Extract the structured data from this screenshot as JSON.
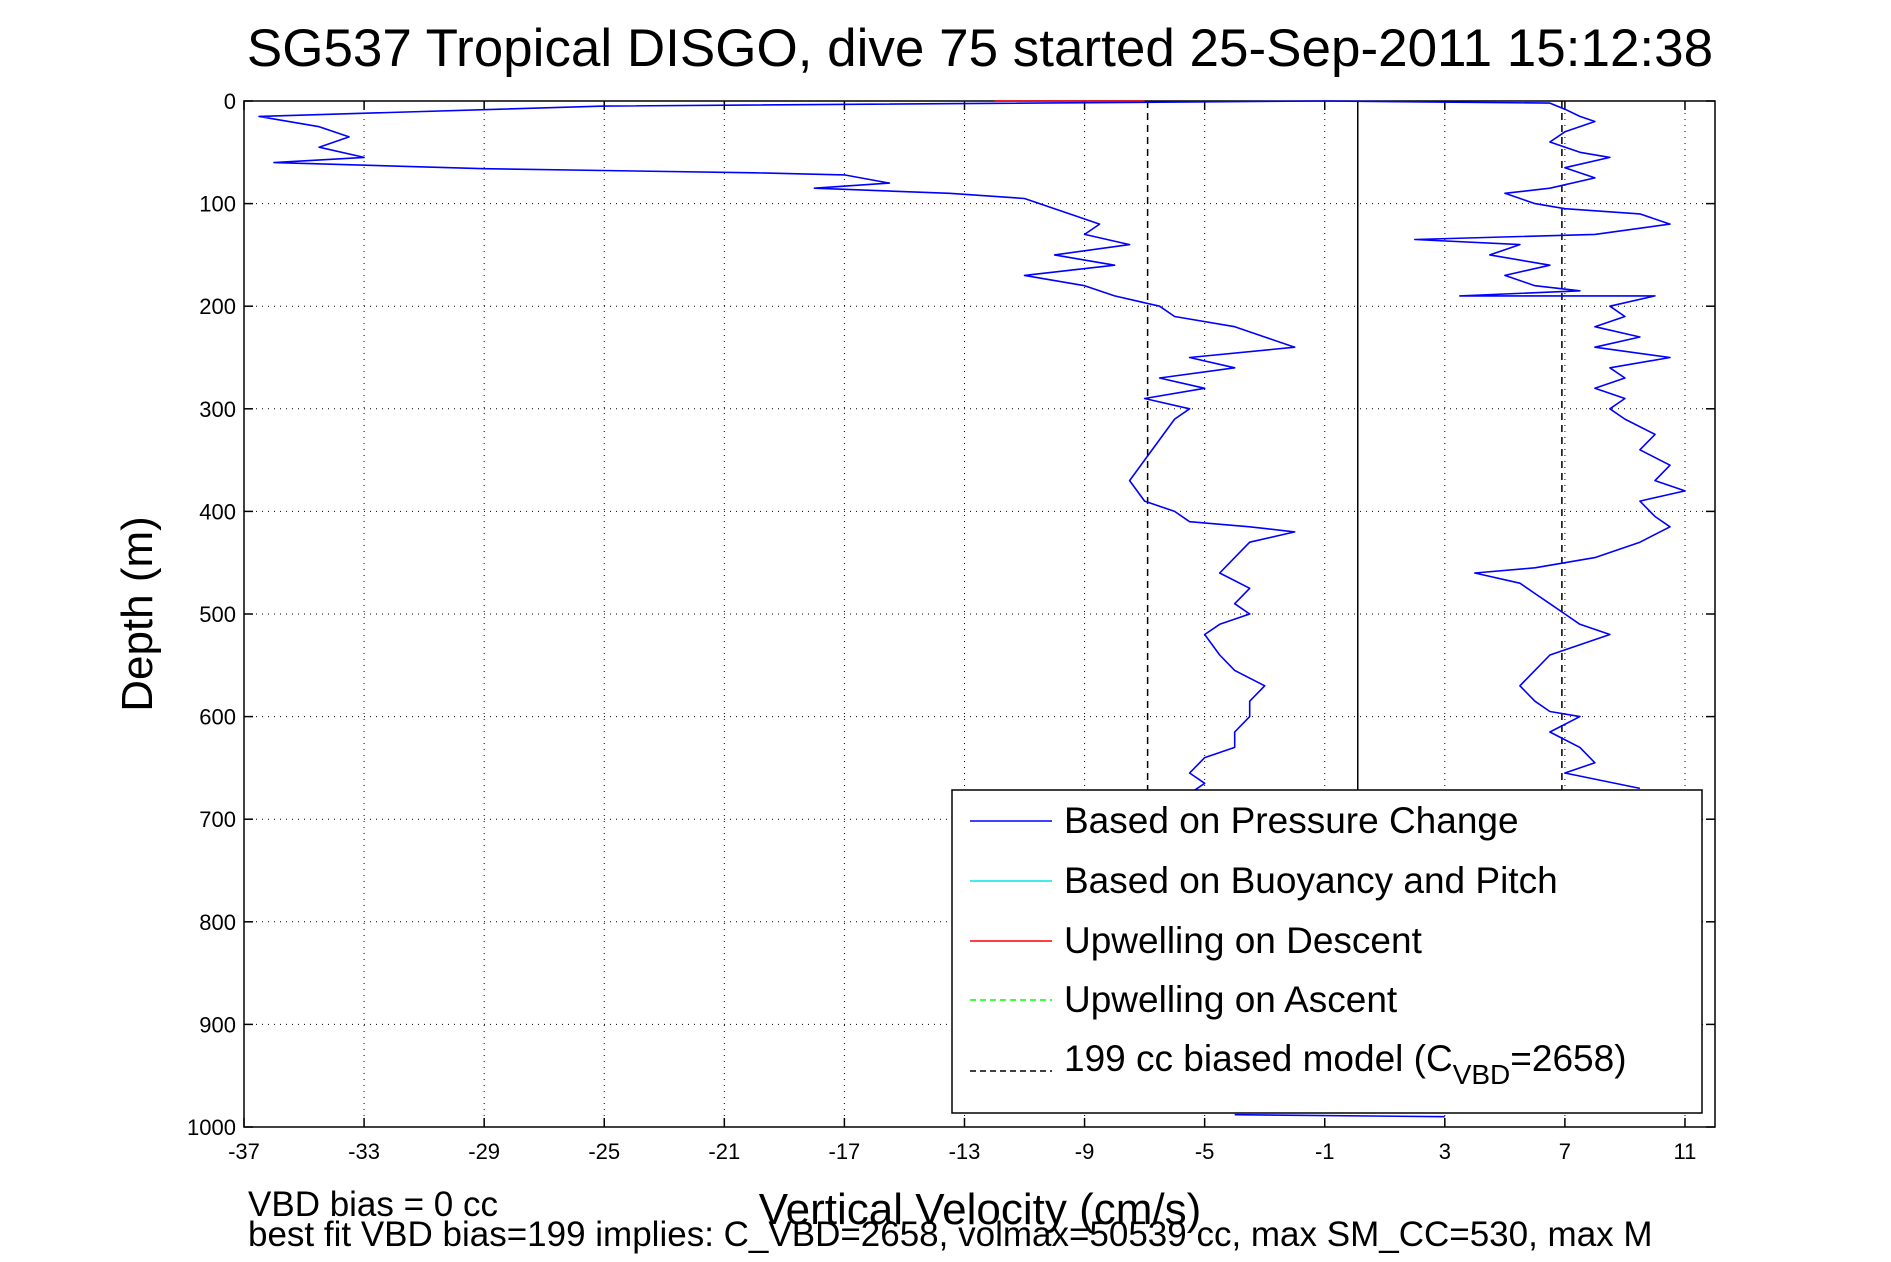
{
  "chart_data": {
    "type": "line",
    "title": "SG537 Tropical DISGO, dive 75 started 25-Sep-2011 15:12:38",
    "xlabel": "Vertical Velocity (cm/s)",
    "ylabel": "Depth (m)",
    "xlim": [
      -37,
      12
    ],
    "ylim": [
      0,
      1000
    ],
    "y_reversed": true,
    "grid": true,
    "legend_placement": "bottom-right",
    "xticks": [
      "-37",
      "-33",
      "-29",
      "-25",
      "-21",
      "-17",
      "-13",
      "-9",
      "-5",
      "-1",
      "3",
      "7",
      "11"
    ],
    "yticks": [
      "0",
      "100",
      "200",
      "300",
      "400",
      "500",
      "600",
      "700",
      "800",
      "900",
      "1000"
    ],
    "series": [
      {
        "name": "Based on Pressure Change",
        "color": "#0000ff",
        "points": [
          [
            -1.0,
            0
          ],
          [
            -25.0,
            5
          ],
          [
            -36.5,
            15
          ],
          [
            -34.5,
            25
          ],
          [
            -33.5,
            35
          ],
          [
            -34.5,
            45
          ],
          [
            -33.0,
            55
          ],
          [
            -36.0,
            60
          ],
          [
            -29.0,
            66
          ],
          [
            -20.0,
            70
          ],
          [
            -17.0,
            72
          ],
          [
            -15.5,
            80
          ],
          [
            -18.0,
            85
          ],
          [
            -13.5,
            90
          ],
          [
            -11.0,
            95
          ],
          [
            -9.5,
            110
          ],
          [
            -8.5,
            120
          ],
          [
            -9.0,
            130
          ],
          [
            -7.5,
            140
          ],
          [
            -10.0,
            150
          ],
          [
            -8.0,
            160
          ],
          [
            -11.0,
            170
          ],
          [
            -9.0,
            180
          ],
          [
            -8.0,
            190
          ],
          [
            -6.5,
            200
          ],
          [
            -6.0,
            210
          ],
          [
            -4.0,
            220
          ],
          [
            -3.0,
            230
          ],
          [
            -2.0,
            240
          ],
          [
            -5.5,
            250
          ],
          [
            -4.0,
            260
          ],
          [
            -6.5,
            270
          ],
          [
            -5.0,
            280
          ],
          [
            -7.0,
            290
          ],
          [
            -5.5,
            300
          ],
          [
            -6.0,
            310
          ],
          [
            -6.5,
            330
          ],
          [
            -7.0,
            350
          ],
          [
            -7.5,
            370
          ],
          [
            -7.0,
            390
          ],
          [
            -6.0,
            400
          ],
          [
            -5.5,
            410
          ],
          [
            -3.5,
            415
          ],
          [
            -2.0,
            420
          ],
          [
            -3.5,
            430
          ],
          [
            -4.0,
            445
          ],
          [
            -4.5,
            460
          ],
          [
            -3.5,
            475
          ],
          [
            -4.0,
            490
          ],
          [
            -3.5,
            500
          ],
          [
            -4.5,
            510
          ],
          [
            -5.0,
            520
          ],
          [
            -4.5,
            540
          ],
          [
            -4.0,
            555
          ],
          [
            -3.0,
            570
          ],
          [
            -3.5,
            585
          ],
          [
            -3.5,
            600
          ],
          [
            -4.0,
            615
          ],
          [
            -4.0,
            630
          ],
          [
            -5.0,
            640
          ],
          [
            -5.5,
            655
          ],
          [
            -5.0,
            665
          ],
          [
            -5.5,
            675
          ],
          [
            -5.0,
            685
          ]
        ]
      },
      {
        "name": "Based on Pressure Change",
        "color": "#0000ff",
        "points": [
          [
            -1.0,
            0
          ],
          [
            6.5,
            2
          ],
          [
            7.0,
            8
          ],
          [
            7.5,
            15
          ],
          [
            8.0,
            20
          ],
          [
            7.0,
            30
          ],
          [
            6.5,
            40
          ],
          [
            7.5,
            50
          ],
          [
            8.5,
            55
          ],
          [
            7.0,
            65
          ],
          [
            8.0,
            75
          ],
          [
            6.5,
            85
          ],
          [
            5.0,
            90
          ],
          [
            6.0,
            100
          ],
          [
            7.0,
            105
          ],
          [
            9.5,
            110
          ],
          [
            10.5,
            120
          ],
          [
            8.0,
            130
          ],
          [
            2.0,
            135
          ],
          [
            5.5,
            140
          ],
          [
            4.5,
            150
          ],
          [
            6.5,
            160
          ],
          [
            5.0,
            170
          ],
          [
            6.0,
            180
          ],
          [
            7.5,
            185
          ],
          [
            3.5,
            190
          ],
          [
            10.0,
            190
          ],
          [
            8.5,
            200
          ],
          [
            9.0,
            210
          ],
          [
            8.0,
            220
          ],
          [
            9.5,
            230
          ],
          [
            8.0,
            240
          ],
          [
            10.5,
            250
          ],
          [
            8.5,
            260
          ],
          [
            9.0,
            270
          ],
          [
            8.0,
            280
          ],
          [
            9.0,
            290
          ],
          [
            8.5,
            300
          ],
          [
            9.0,
            310
          ],
          [
            10.0,
            325
          ],
          [
            9.5,
            340
          ],
          [
            10.5,
            355
          ],
          [
            10.0,
            370
          ],
          [
            11.0,
            380
          ],
          [
            9.5,
            390
          ],
          [
            10.0,
            405
          ],
          [
            10.5,
            415
          ],
          [
            9.5,
            430
          ],
          [
            8.0,
            445
          ],
          [
            6.0,
            455
          ],
          [
            4.0,
            460
          ],
          [
            5.5,
            470
          ],
          [
            6.0,
            480
          ],
          [
            6.5,
            490
          ],
          [
            7.0,
            500
          ],
          [
            7.5,
            510
          ],
          [
            8.5,
            520
          ],
          [
            7.5,
            530
          ],
          [
            6.5,
            540
          ],
          [
            6.0,
            555
          ],
          [
            5.5,
            570
          ],
          [
            6.0,
            585
          ],
          [
            6.5,
            595
          ],
          [
            7.5,
            600
          ],
          [
            6.5,
            615
          ],
          [
            7.5,
            630
          ],
          [
            8.0,
            645
          ],
          [
            7.0,
            655
          ],
          [
            9.5,
            670
          ]
        ]
      },
      {
        "name": "Upwelling on Descent",
        "color": "#ff0000",
        "points": [
          [
            -12.0,
            0
          ],
          [
            -7.0,
            0
          ]
        ]
      },
      {
        "name": "Based on Pressure Change",
        "color": "#0000ff",
        "points": [
          [
            -4.0,
            988
          ],
          [
            3.0,
            990
          ]
        ]
      }
    ],
    "reference_lines": [
      {
        "name": "199 cc biased model",
        "style": "dashed",
        "color": "#000000",
        "x": -6.9,
        "ymax": 690
      },
      {
        "name": "199 cc biased model",
        "style": "dashed",
        "color": "#000000",
        "x": 6.9,
        "ymax": 690
      },
      {
        "name": "zero",
        "style": "solid",
        "color": "#000000",
        "x": 0.1,
        "ymax": 690
      }
    ],
    "legend": [
      {
        "label": "Based on Pressure Change",
        "color": "#0000ff",
        "style": "solid"
      },
      {
        "label": "Based on Buoyancy and Pitch",
        "color": "#00e5e5",
        "style": "solid"
      },
      {
        "label": "Upwelling on Descent",
        "color": "#ff0000",
        "style": "solid"
      },
      {
        "label": "Upwelling on Ascent",
        "color": "#00ff00",
        "style": "dashed"
      },
      {
        "label": "199 cc biased model (C",
        "sub": "VBD",
        "tail": "=2658)",
        "color": "#000000",
        "style": "dashed"
      }
    ],
    "notes": [
      "VBD bias = 0 cc",
      "best fit VBD bias=199 implies: C_VBD=2658, volmax=50539 cc, max SM_CC=530, max M"
    ]
  }
}
